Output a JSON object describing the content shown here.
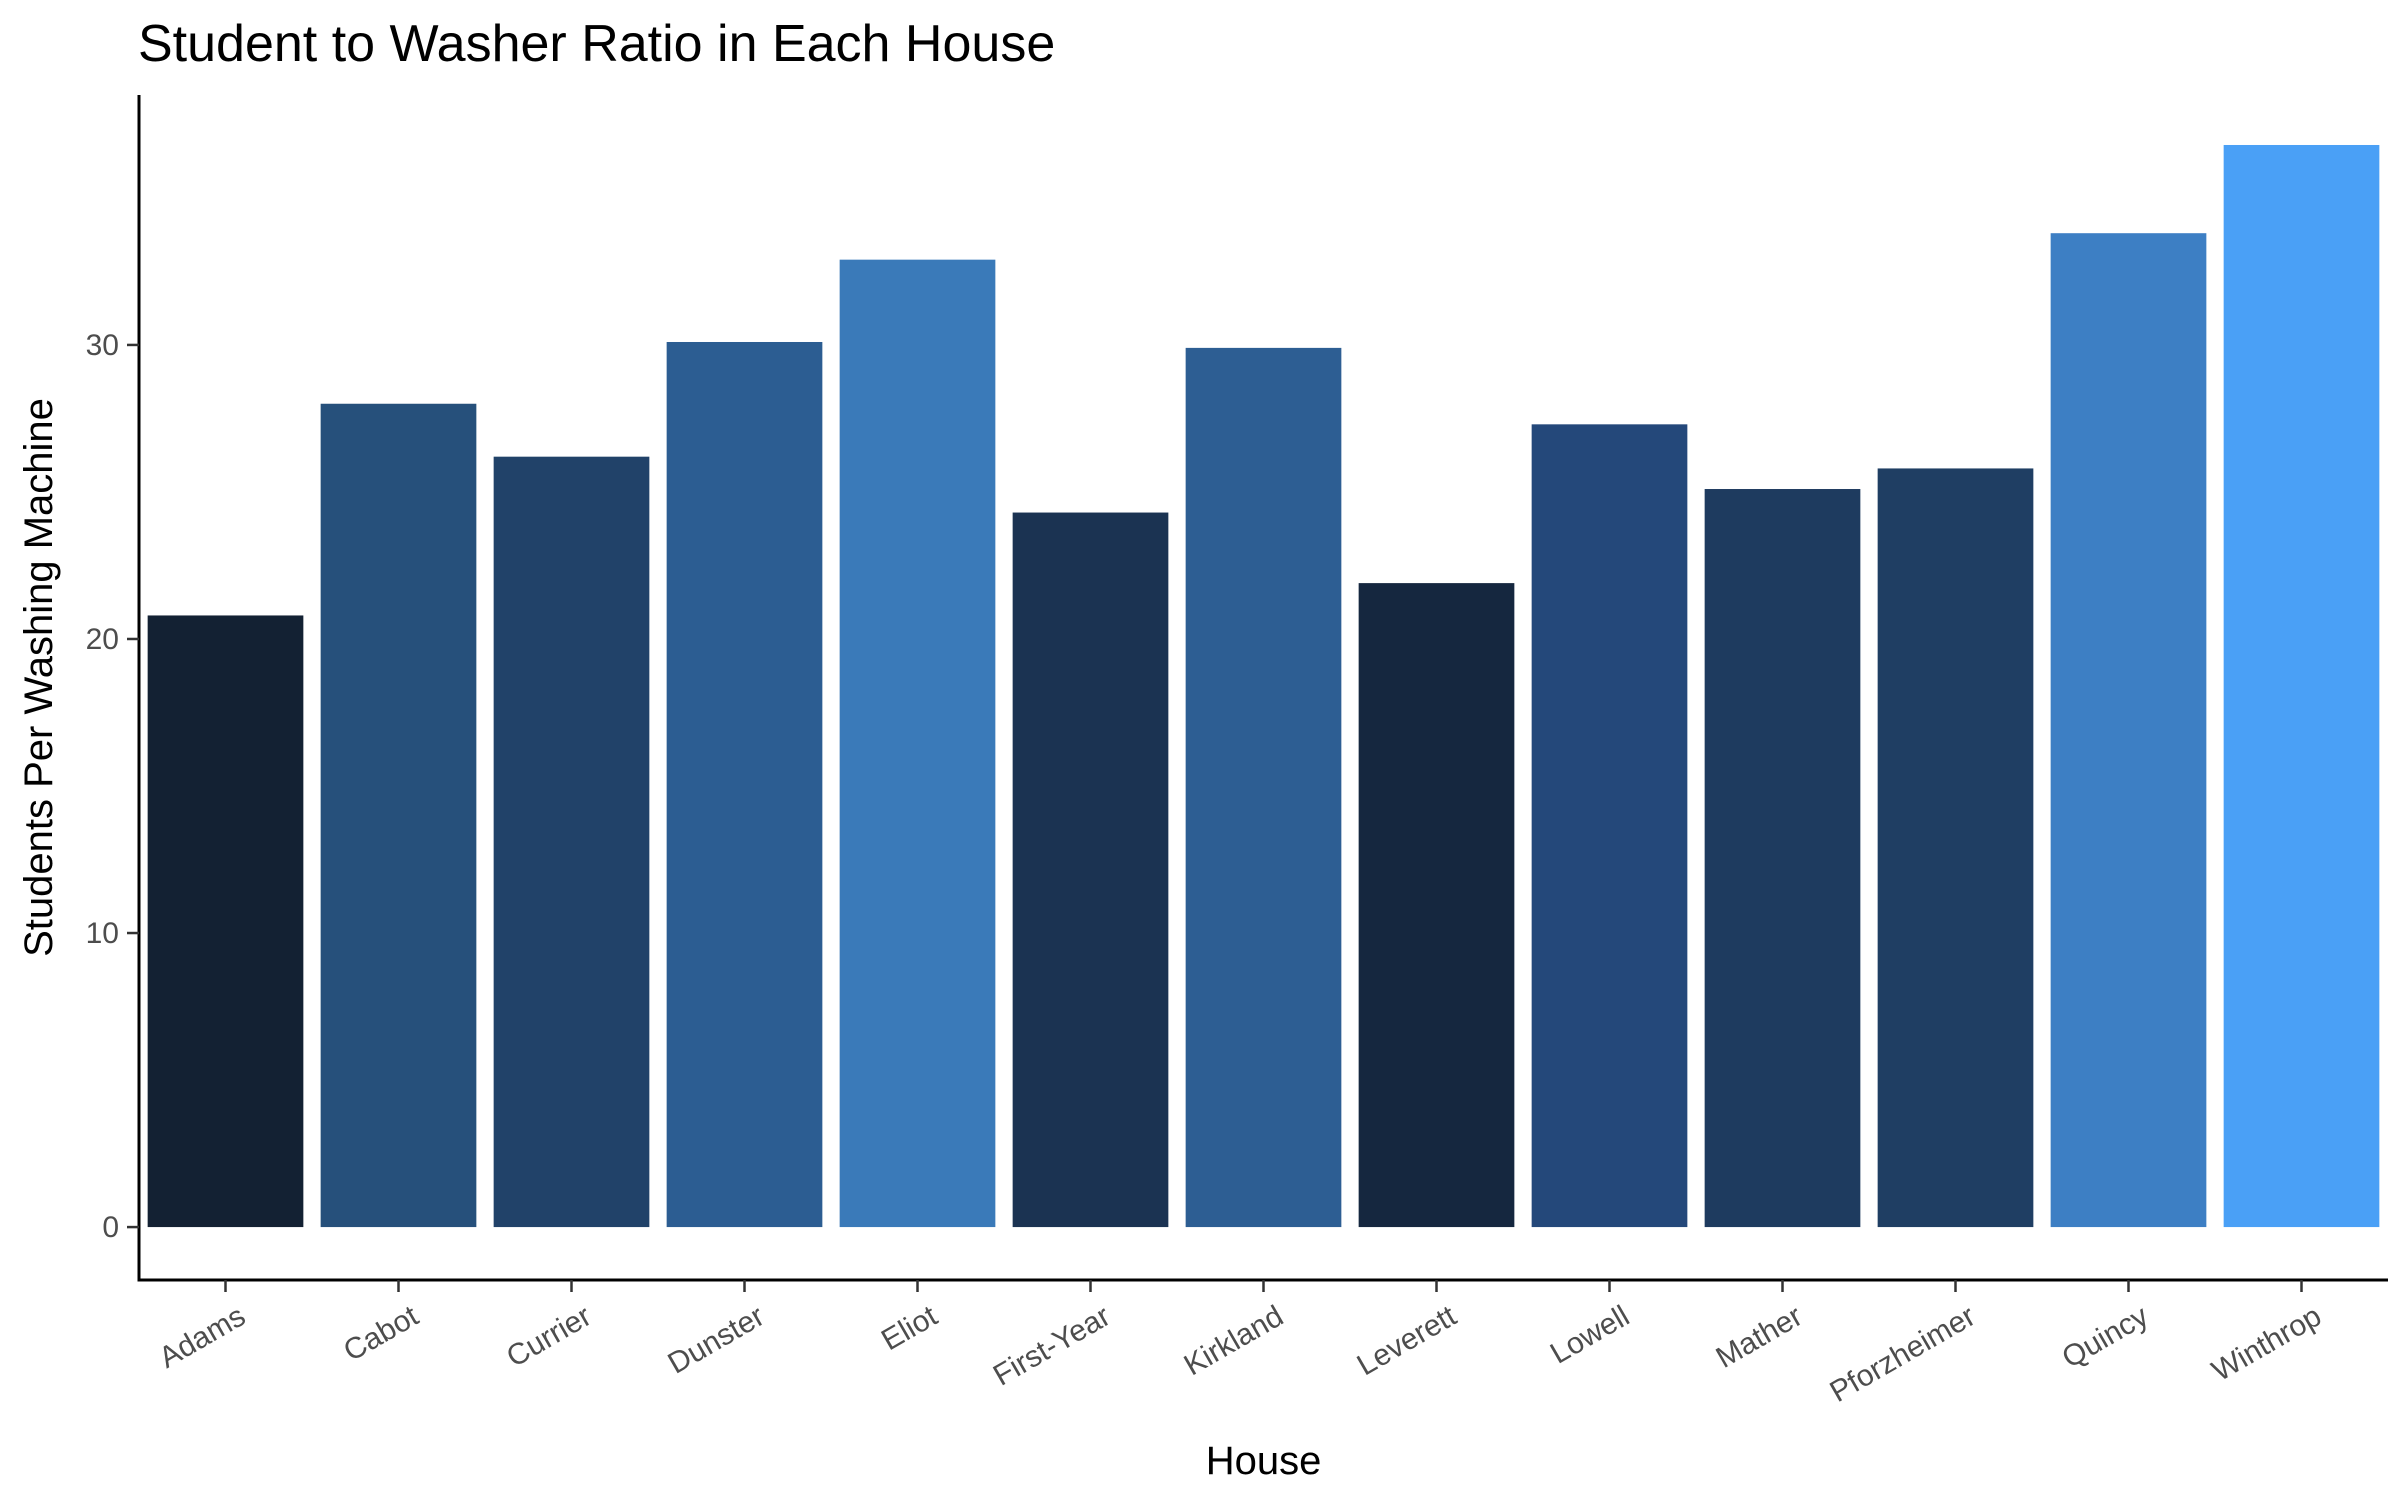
{
  "chart_data": {
    "type": "bar",
    "title": "Student to Washer Ratio in Each House",
    "xlabel": "House",
    "ylabel": "Students Per Washing Machine",
    "categories": [
      "Adams",
      "Cabot",
      "Currier",
      "Dunster",
      "Eliot",
      "First-Year",
      "Kirkland",
      "Leverett",
      "Lowell",
      "Mather",
      "Pforzheimer",
      "Quincy",
      "Winthrop"
    ],
    "values": [
      20.8,
      28.0,
      26.2,
      30.1,
      32.9,
      24.3,
      29.9,
      21.9,
      27.3,
      25.1,
      25.8,
      33.8,
      36.8
    ],
    "colors": [
      "#132133",
      "#26507b",
      "#214269",
      "#2c5d92",
      "#3a7ab9",
      "#1b3352",
      "#2d5e93",
      "#15273f",
      "#24487a",
      "#1e3b5f",
      "#1f3e63",
      "#3d7fc4",
      "#4aa0f6"
    ],
    "ylim": [
      -1.8,
      38.5
    ],
    "yticks": [
      0,
      10,
      20,
      30
    ],
    "grid": false,
    "legend": "none"
  }
}
